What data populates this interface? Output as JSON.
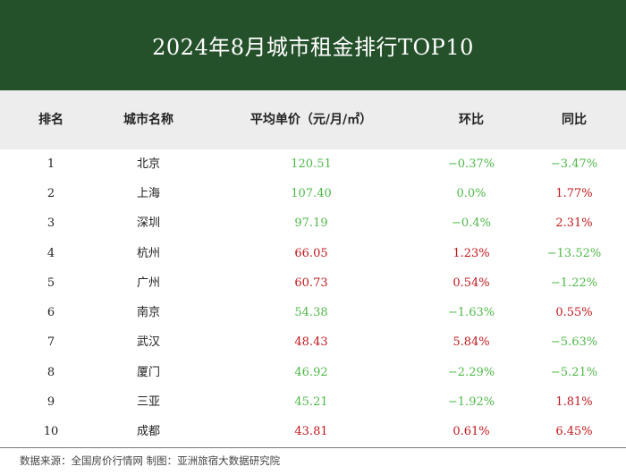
{
  "title": "2024年8月城市租金排行TOP10",
  "colors": {
    "up": "#c0171c",
    "down": "#4fb848",
    "header_bg": "#24502a"
  },
  "columns": [
    "排名",
    "城市名称",
    "平均单价（元/月/㎡）",
    "环比",
    "同比"
  ],
  "rows": [
    {
      "rank": "1",
      "city": "北京",
      "price": "120.51",
      "mom": "−0.37%",
      "yoy": "−3.47%",
      "price_dir": "down",
      "mom_dir": "down",
      "yoy_dir": "down"
    },
    {
      "rank": "2",
      "city": "上海",
      "price": "107.40",
      "mom": "0.0%",
      "yoy": "1.77%",
      "price_dir": "down",
      "mom_dir": "down",
      "yoy_dir": "up"
    },
    {
      "rank": "3",
      "city": "深圳",
      "price": "97.19",
      "mom": "−0.4%",
      "yoy": "2.31%",
      "price_dir": "down",
      "mom_dir": "down",
      "yoy_dir": "up"
    },
    {
      "rank": "4",
      "city": "杭州",
      "price": "66.05",
      "mom": "1.23%",
      "yoy": "−13.52%",
      "price_dir": "up",
      "mom_dir": "up",
      "yoy_dir": "down"
    },
    {
      "rank": "5",
      "city": "广州",
      "price": "60.73",
      "mom": "0.54%",
      "yoy": "−1.22%",
      "price_dir": "up",
      "mom_dir": "up",
      "yoy_dir": "down"
    },
    {
      "rank": "6",
      "city": "南京",
      "price": "54.38",
      "mom": "−1.63%",
      "yoy": "0.55%",
      "price_dir": "down",
      "mom_dir": "down",
      "yoy_dir": "up"
    },
    {
      "rank": "7",
      "city": "武汉",
      "price": "48.43",
      "mom": "5.84%",
      "yoy": "−5.63%",
      "price_dir": "up",
      "mom_dir": "up",
      "yoy_dir": "down"
    },
    {
      "rank": "8",
      "city": "厦门",
      "price": "46.92",
      "mom": "−2.29%",
      "yoy": "−5.21%",
      "price_dir": "down",
      "mom_dir": "down",
      "yoy_dir": "down"
    },
    {
      "rank": "9",
      "city": "三亚",
      "price": "45.21",
      "mom": "−1.92%",
      "yoy": "1.81%",
      "price_dir": "down",
      "mom_dir": "down",
      "yoy_dir": "up"
    },
    {
      "rank": "10",
      "city": "成都",
      "price": "43.81",
      "mom": "0.61%",
      "yoy": "6.45%",
      "price_dir": "up",
      "mom_dir": "up",
      "yoy_dir": "up"
    }
  ],
  "footer": "数据来源：全国房价行情网   制图：亚洲旅宿大数据研究院"
}
